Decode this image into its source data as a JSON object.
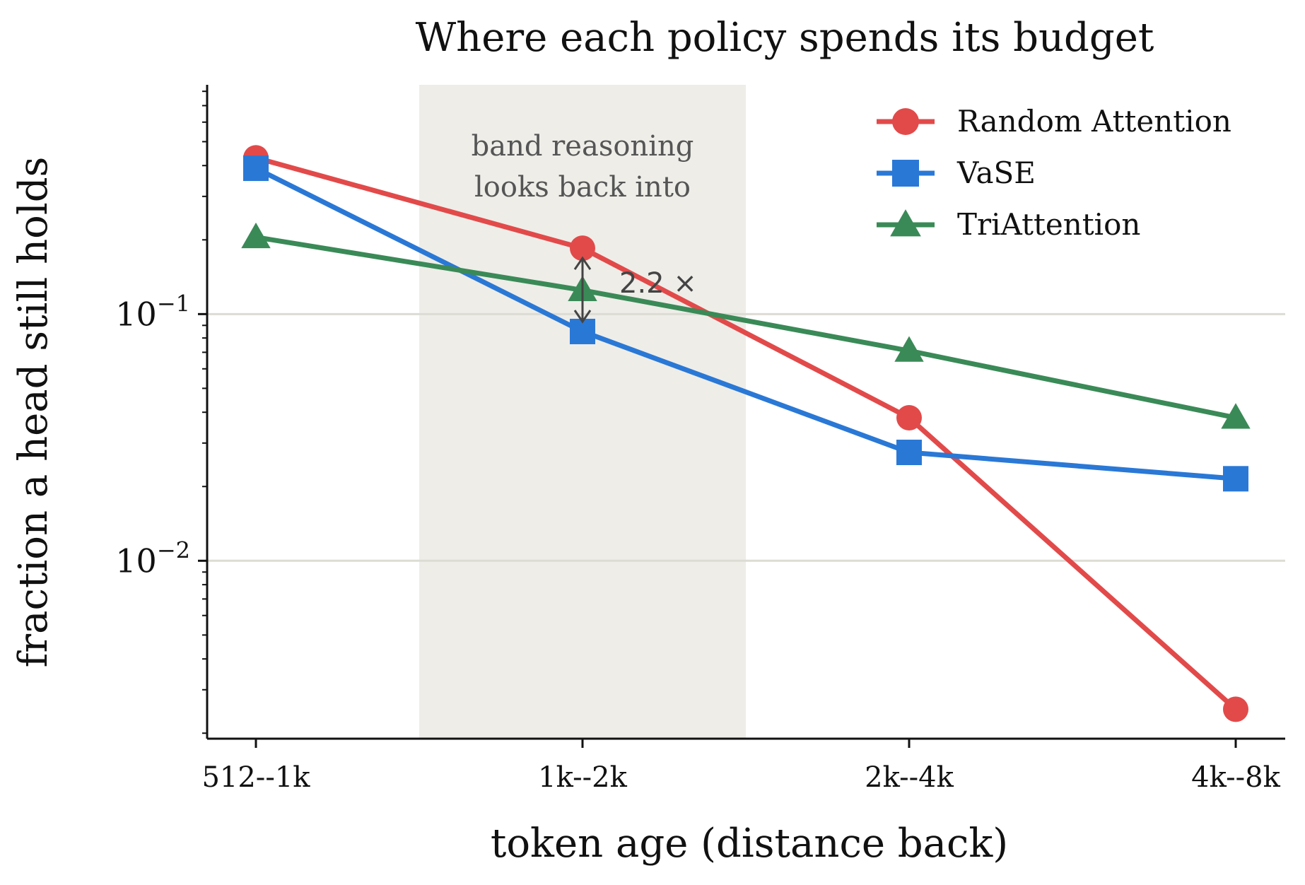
{
  "chart_data": {
    "type": "line",
    "title": "Where each policy spends its budget",
    "xlabel": "token age (distance back)",
    "ylabel": "fraction a head still holds",
    "categories": [
      "512--1k",
      "1k--2k",
      "2k--4k",
      "4k--8k"
    ],
    "yscale": "log",
    "ylim": [
      0.0019,
      0.85
    ],
    "yticks": [
      {
        "value": 0.1,
        "base": "10",
        "exp": "−1"
      },
      {
        "value": 0.01,
        "base": "10",
        "exp": "−2"
      }
    ],
    "grid": "y-major",
    "legend_position": "top-right",
    "series": [
      {
        "name": "Random Attention",
        "color": "#e24a4a",
        "marker": "circle",
        "values": [
          0.43,
          0.185,
          0.038,
          0.0025
        ]
      },
      {
        "name": "VaSE",
        "color": "#2a78d6",
        "marker": "square",
        "values": [
          0.39,
          0.085,
          0.0275,
          0.0215
        ]
      },
      {
        "name": "TriAttention",
        "color": "#3a8a57",
        "marker": "triangle",
        "values": [
          0.205,
          0.125,
          0.071,
          0.038
        ]
      }
    ],
    "annotations": {
      "band": {
        "from_category": 0.5,
        "to_category": 1.5,
        "line1": "band reasoning",
        "line2": "looks back into",
        "color": "#eeede8"
      },
      "ratio": {
        "category": 1,
        "from_series": "Random Attention",
        "to_series": "VaSE",
        "label": "2.2 ×"
      }
    }
  }
}
